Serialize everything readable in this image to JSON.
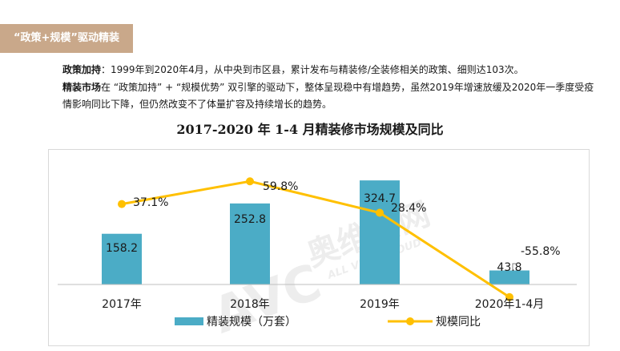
{
  "header": {
    "tag": "“政策+规模”驱动精装"
  },
  "paragraphs": {
    "p1_label": "政策加持",
    "p1_text": "：1999年到2020年4月，从中央到市区县，累计发布与精装修/全装修相关的政策、细则达103次。",
    "p2_label": "精装市场",
    "p2_text": "在 “政策加持” + “规模优势” 双引擎的驱动下，整体呈现稳中有增趋势，虽然2019年增速放缓及2020年一季度受疫情影响同比下降，但仍然改变不了体量扩容及持续增长的趋势。"
  },
  "watermark": {
    "brand": "奥维云网",
    "sub": "ALL VIEW CLOUD",
    "logo": "AVC"
  },
  "colors": {
    "bar": "#4bacc6",
    "line": "#ffc000",
    "tag": "#c9a88a"
  },
  "chart_data": {
    "type": "bar+line",
    "title": "2017-2020 年 1-4 月精装修市场规模及同比",
    "categories": [
      "2017年",
      "2018年",
      "2019年",
      "2020年1-4月"
    ],
    "series": [
      {
        "name": "精装规模（万套）",
        "type": "bar",
        "values": [
          158.2,
          252.8,
          324.7,
          43.8
        ],
        "labels": [
          "158.2",
          "252.8",
          "324.7",
          "43.8"
        ]
      },
      {
        "name": "规模同比",
        "type": "line",
        "values": [
          37.1,
          59.8,
          28.4,
          -55.8
        ],
        "labels": [
          "37.1%",
          "59.8%",
          "28.4%",
          "-55.8%"
        ]
      }
    ],
    "legend_position": "bottom",
    "grid": false
  }
}
